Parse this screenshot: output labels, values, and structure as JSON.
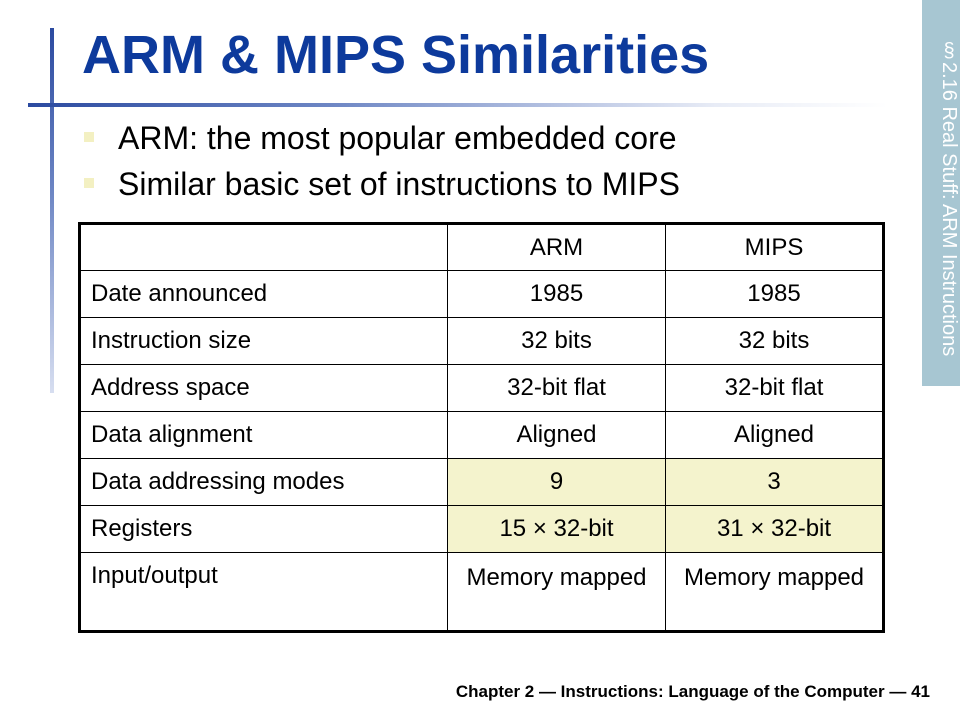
{
  "slide": {
    "title": "ARM & MIPS Similarities",
    "side_tab": "§2.16 Real Stuff: ARM Instructions",
    "bullets": [
      "ARM: the most popular embedded core",
      "Similar basic set of instructions to MIPS"
    ],
    "table": {
      "headers": [
        "",
        "ARM",
        "MIPS"
      ],
      "rows": [
        {
          "label": "Date announced",
          "arm": "1985",
          "mips": "1985",
          "highlight": false
        },
        {
          "label": "Instruction size",
          "arm": "32 bits",
          "mips": "32 bits",
          "highlight": false
        },
        {
          "label": "Address space",
          "arm": "32-bit flat",
          "mips": "32-bit flat",
          "highlight": false
        },
        {
          "label": "Data alignment",
          "arm": "Aligned",
          "mips": "Aligned",
          "highlight": false
        },
        {
          "label": "Data addressing modes",
          "arm": "9",
          "mips": "3",
          "highlight": true
        },
        {
          "label": "Registers",
          "arm": "15 × 32-bit",
          "mips": "31 × 32-bit",
          "highlight": true
        },
        {
          "label": "Input/output",
          "arm": "Memory mapped",
          "mips": "Memory mapped",
          "highlight": false
        }
      ]
    },
    "footer": "Chapter 2 — Instructions: Language of the Computer — 41"
  },
  "colors": {
    "title": "#0d3a9c",
    "side_tab_bg": "#a7c6d2",
    "highlight_cell": "#f4f3cd",
    "bullet": "#f3f0c2"
  }
}
